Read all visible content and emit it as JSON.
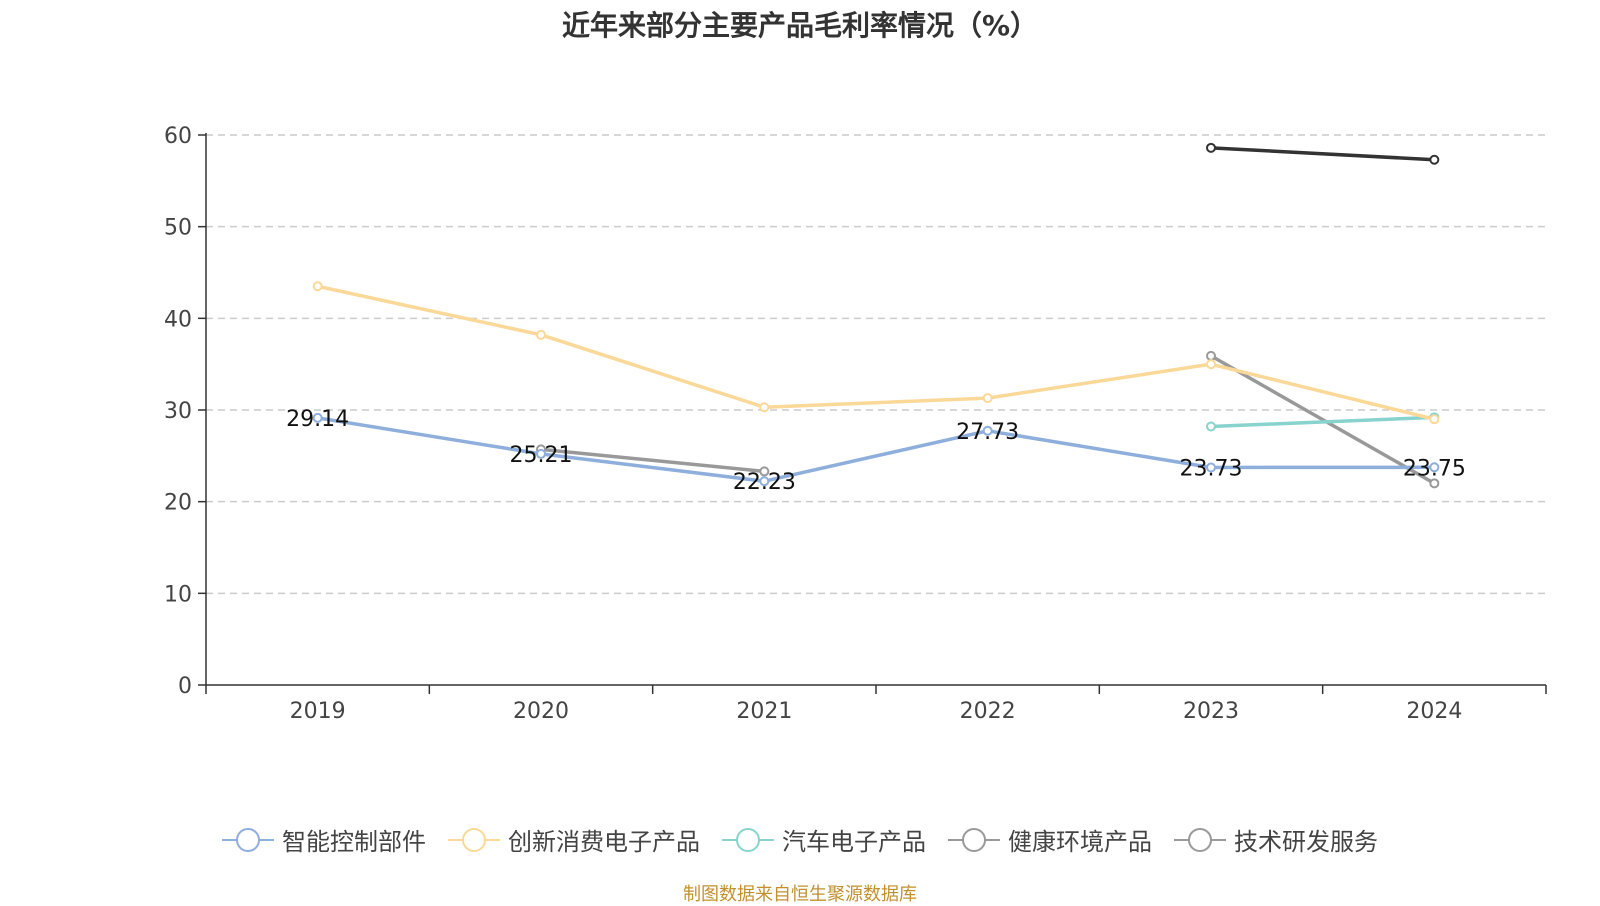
{
  "chart_data": {
    "type": "line",
    "title": "近年来部分主要产品毛利率情况（%）",
    "categories": [
      "2019",
      "2020",
      "2021",
      "2022",
      "2023",
      "2024"
    ],
    "ylim": [
      0,
      60
    ],
    "yticks": [
      0,
      10,
      20,
      30,
      40,
      50,
      60
    ],
    "grid": true,
    "legend_position": "bottom",
    "series": [
      {
        "name": "智能控制部件",
        "color": "#8eaedb",
        "values": [
          29.14,
          25.21,
          22.23,
          27.73,
          23.73,
          23.75
        ],
        "labels": [
          "29.14",
          "25.21",
          "22.23",
          "27.73",
          "23.73",
          "23.75"
        ]
      },
      {
        "name": "创新消费电子产品",
        "color": "#f9d898",
        "values": [
          43.5,
          38.2,
          30.3,
          31.3,
          35.0,
          29.0
        ],
        "labels": []
      },
      {
        "name": "汽车电子产品",
        "color": "#88d3cd",
        "values": [
          null,
          null,
          null,
          null,
          28.2,
          29.2
        ],
        "labels": []
      },
      {
        "name": "健康环境产品",
        "color": "#333333",
        "values": [
          null,
          null,
          null,
          null,
          58.6,
          57.3
        ],
        "labels": []
      },
      {
        "name": "技术研发服务",
        "color": "#999999",
        "values": [
          null,
          25.7,
          23.3,
          null,
          35.9,
          22.0
        ],
        "labels": []
      }
    ],
    "legend_styles": [
      {
        "color": "#8eaedb"
      },
      {
        "color": "#f9d898"
      },
      {
        "color": "#88d3cd"
      },
      {
        "color": "#999999"
      },
      {
        "color": "#999999"
      }
    ]
  },
  "source_text": "制图数据来自恒生聚源数据库"
}
